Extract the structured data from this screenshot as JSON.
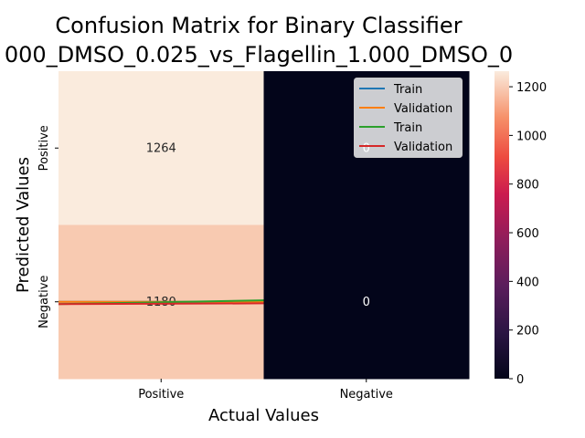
{
  "chart_data": {
    "type": "heatmap",
    "title": "Confusion Matrix for Binary Classifier",
    "subtitle": "000_DMSO_0.025_vs_Flagellin_1.000_DMSO_0",
    "xlabel": "Actual Values",
    "ylabel": "Predicted Values",
    "x_categories": [
      "Positive",
      "Negative"
    ],
    "y_categories": [
      "Positive",
      "Negative"
    ],
    "matrix": [
      [
        1264,
        0
      ],
      [
        1180,
        0
      ]
    ],
    "cell_labels": [
      [
        "1264",
        "0"
      ],
      [
        "1180",
        "0"
      ]
    ],
    "colorbar": {
      "range": [
        0,
        1264
      ],
      "ticks": [
        0,
        200,
        400,
        600,
        800,
        1000,
        1200
      ],
      "tick_labels": [
        "0",
        "200",
        "400",
        "600",
        "800",
        "1000",
        "1200"
      ],
      "colormap": "rocket"
    },
    "legend": {
      "placement": "top-right",
      "entries": [
        {
          "label": "Train",
          "color": "#1f77b4"
        },
        {
          "label": "Validation",
          "color": "#ff7f0e"
        },
        {
          "label": "Train",
          "color": "#2ca02c"
        },
        {
          "label": "Validation",
          "color": "#d62728"
        }
      ]
    },
    "overlay_lines": [
      {
        "name": "Train",
        "color": "#1f77b4",
        "y": [
          1.5,
          1.5
        ]
      },
      {
        "name": "Validation",
        "color": "#ff7f0e",
        "y": [
          1.5,
          1.5
        ]
      },
      {
        "name": "Train",
        "color": "#2ca02c",
        "y": [
          1.515,
          1.49
        ]
      },
      {
        "name": "Validation",
        "color": "#d62728",
        "y": [
          1.515,
          1.51
        ]
      }
    ]
  }
}
